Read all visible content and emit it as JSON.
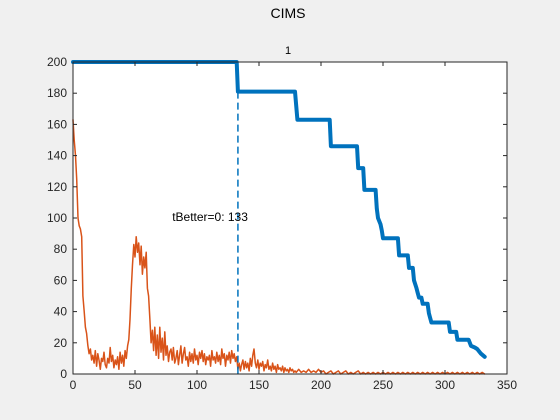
{
  "figure": {
    "title": "CIMS",
    "background": "#f0f0f0"
  },
  "chart_data": {
    "type": "line",
    "title": "1",
    "xlabel": "",
    "ylabel": "",
    "xlim": [
      0,
      350
    ],
    "ylim": [
      0,
      200
    ],
    "xticks": [
      0,
      50,
      100,
      150,
      200,
      250,
      300,
      350
    ],
    "yticks": [
      0,
      20,
      40,
      60,
      80,
      100,
      120,
      140,
      160,
      180,
      200
    ],
    "grid": false,
    "series": [
      {
        "color": "#0072bd",
        "style": "step-thick",
        "points": [
          [
            0,
            200
          ],
          [
            132,
            200
          ],
          [
            133,
            181
          ],
          [
            179,
            181
          ],
          [
            181,
            163
          ],
          [
            207,
            163
          ],
          [
            208,
            146
          ],
          [
            229,
            146
          ],
          [
            230,
            132
          ],
          [
            234,
            132
          ],
          [
            235,
            118
          ],
          [
            244,
            118
          ],
          [
            245,
            106
          ],
          [
            246,
            100
          ],
          [
            248,
            96
          ],
          [
            249,
            92
          ],
          [
            250,
            87
          ],
          [
            262,
            87
          ],
          [
            263,
            76
          ],
          [
            270,
            76
          ],
          [
            271,
            68
          ],
          [
            274,
            68
          ],
          [
            275,
            60
          ],
          [
            277,
            55
          ],
          [
            278,
            52
          ],
          [
            279,
            49
          ],
          [
            281,
            49
          ],
          [
            282,
            45
          ],
          [
            286,
            45
          ],
          [
            287,
            39
          ],
          [
            288,
            36
          ],
          [
            289,
            33
          ],
          [
            303,
            33
          ],
          [
            304,
            27
          ],
          [
            309,
            27
          ],
          [
            310,
            22
          ],
          [
            319,
            22
          ],
          [
            321,
            18
          ],
          [
            324,
            17
          ],
          [
            326,
            16
          ],
          [
            329,
            13
          ],
          [
            332,
            11
          ]
        ]
      },
      {
        "color": "#d95319",
        "style": "line-thin",
        "points": [
          [
            0,
            163
          ],
          [
            1,
            150
          ],
          [
            2,
            140
          ],
          [
            3,
            125
          ],
          [
            4,
            100
          ],
          [
            5,
            95
          ],
          [
            6,
            93
          ],
          [
            7,
            88
          ],
          [
            8,
            50
          ],
          [
            9,
            40
          ],
          [
            10,
            30
          ],
          [
            11,
            26
          ],
          [
            12,
            18
          ],
          [
            13,
            13
          ],
          [
            14,
            16
          ],
          [
            15,
            9
          ],
          [
            16,
            12
          ],
          [
            17,
            7
          ],
          [
            18,
            15
          ],
          [
            19,
            5
          ],
          [
            20,
            13
          ],
          [
            21,
            9
          ],
          [
            22,
            3
          ],
          [
            23,
            10
          ],
          [
            24,
            8
          ],
          [
            25,
            14
          ],
          [
            26,
            6
          ],
          [
            27,
            4
          ],
          [
            28,
            10
          ],
          [
            29,
            7
          ],
          [
            30,
            17
          ],
          [
            31,
            8
          ],
          [
            32,
            12
          ],
          [
            33,
            4
          ],
          [
            34,
            9
          ],
          [
            35,
            6
          ],
          [
            36,
            11
          ],
          [
            37,
            3
          ],
          [
            38,
            14
          ],
          [
            39,
            7
          ],
          [
            40,
            12
          ],
          [
            41,
            5
          ],
          [
            42,
            15
          ],
          [
            43,
            10
          ],
          [
            44,
            18
          ],
          [
            45,
            22
          ],
          [
            46,
            35
          ],
          [
            47,
            55
          ],
          [
            48,
            70
          ],
          [
            49,
            83
          ],
          [
            50,
            75
          ],
          [
            51,
            88
          ],
          [
            52,
            78
          ],
          [
            53,
            84
          ],
          [
            54,
            70
          ],
          [
            55,
            82
          ],
          [
            56,
            64
          ],
          [
            57,
            75
          ],
          [
            58,
            68
          ],
          [
            59,
            78
          ],
          [
            60,
            55
          ],
          [
            61,
            50
          ],
          [
            62,
            35
          ],
          [
            63,
            20
          ],
          [
            64,
            28
          ],
          [
            65,
            15
          ],
          [
            66,
            30
          ],
          [
            67,
            12
          ],
          [
            68,
            25
          ],
          [
            69,
            10
          ],
          [
            70,
            30
          ],
          [
            71,
            14
          ],
          [
            72,
            23
          ],
          [
            73,
            9
          ],
          [
            74,
            27
          ],
          [
            75,
            12
          ],
          [
            76,
            18
          ],
          [
            77,
            8
          ],
          [
            78,
            14
          ],
          [
            79,
            16
          ],
          [
            80,
            9
          ],
          [
            81,
            17
          ],
          [
            82,
            7
          ],
          [
            83,
            10
          ],
          [
            84,
            15
          ],
          [
            85,
            6
          ],
          [
            86,
            12
          ],
          [
            87,
            18
          ],
          [
            88,
            7
          ],
          [
            89,
            13
          ],
          [
            90,
            17
          ],
          [
            91,
            9
          ],
          [
            92,
            11
          ],
          [
            93,
            5
          ],
          [
            94,
            14
          ],
          [
            95,
            8
          ],
          [
            96,
            13
          ],
          [
            97,
            7
          ],
          [
            98,
            16
          ],
          [
            99,
            9
          ],
          [
            100,
            12
          ],
          [
            101,
            6
          ],
          [
            102,
            14
          ],
          [
            103,
            10
          ],
          [
            104,
            15
          ],
          [
            105,
            8
          ],
          [
            106,
            13
          ],
          [
            107,
            6
          ],
          [
            108,
            11
          ],
          [
            109,
            9
          ],
          [
            110,
            12
          ],
          [
            111,
            5
          ],
          [
            112,
            15
          ],
          [
            113,
            9
          ],
          [
            114,
            11
          ],
          [
            115,
            7
          ],
          [
            116,
            14
          ],
          [
            117,
            8
          ],
          [
            118,
            12
          ],
          [
            119,
            6
          ],
          [
            120,
            16
          ],
          [
            121,
            10
          ],
          [
            122,
            13
          ],
          [
            123,
            5
          ],
          [
            124,
            12
          ],
          [
            125,
            9
          ],
          [
            126,
            14
          ],
          [
            127,
            7
          ],
          [
            128,
            15
          ],
          [
            129,
            10
          ],
          [
            130,
            13
          ],
          [
            131,
            8
          ],
          [
            132,
            11
          ],
          [
            133,
            3
          ],
          [
            134,
            7
          ],
          [
            135,
            2
          ],
          [
            136,
            6
          ],
          [
            137,
            9
          ],
          [
            138,
            3
          ],
          [
            139,
            8
          ],
          [
            140,
            4
          ],
          [
            141,
            7
          ],
          [
            142,
            2
          ],
          [
            143,
            10
          ],
          [
            144,
            5
          ],
          [
            145,
            12
          ],
          [
            146,
            16
          ],
          [
            147,
            7
          ],
          [
            148,
            4
          ],
          [
            149,
            9
          ],
          [
            150,
            3
          ],
          [
            151,
            7
          ],
          [
            152,
            5
          ],
          [
            153,
            8
          ],
          [
            154,
            2
          ],
          [
            155,
            6
          ],
          [
            156,
            4
          ],
          [
            157,
            9
          ],
          [
            158,
            3
          ],
          [
            159,
            5
          ],
          [
            160,
            2
          ],
          [
            161,
            7
          ],
          [
            162,
            3
          ],
          [
            163,
            5
          ],
          [
            164,
            1
          ],
          [
            165,
            6
          ],
          [
            166,
            3
          ],
          [
            167,
            4
          ],
          [
            168,
            2
          ],
          [
            169,
            5
          ],
          [
            170,
            1
          ],
          [
            171,
            4
          ],
          [
            172,
            2
          ],
          [
            173,
            3
          ],
          [
            174,
            1
          ],
          [
            175,
            4
          ],
          [
            176,
            2
          ],
          [
            177,
            3
          ],
          [
            178,
            1
          ],
          [
            179,
            2
          ],
          [
            180,
            1
          ],
          [
            182,
            3
          ],
          [
            184,
            1
          ],
          [
            186,
            2
          ],
          [
            188,
            1
          ],
          [
            190,
            3
          ],
          [
            192,
            1
          ],
          [
            194,
            2
          ],
          [
            196,
            1
          ],
          [
            198,
            3
          ],
          [
            200,
            1
          ],
          [
            202,
            2
          ],
          [
            204,
            0
          ],
          [
            206,
            1
          ],
          [
            208,
            2
          ],
          [
            210,
            0
          ],
          [
            212,
            1
          ],
          [
            214,
            2
          ],
          [
            216,
            0
          ],
          [
            218,
            1
          ],
          [
            220,
            2
          ],
          [
            222,
            0
          ],
          [
            224,
            1
          ],
          [
            226,
            0
          ],
          [
            228,
            1
          ],
          [
            230,
            2
          ],
          [
            232,
            0
          ],
          [
            234,
            1
          ],
          [
            236,
            0
          ],
          [
            238,
            1
          ],
          [
            240,
            0
          ],
          [
            242,
            1
          ],
          [
            244,
            0
          ],
          [
            246,
            1
          ],
          [
            248,
            0
          ],
          [
            250,
            1
          ],
          [
            252,
            0
          ],
          [
            254,
            1
          ],
          [
            256,
            0
          ],
          [
            258,
            1
          ],
          [
            260,
            0
          ],
          [
            262,
            1
          ],
          [
            264,
            0
          ],
          [
            266,
            1
          ],
          [
            268,
            0
          ],
          [
            270,
            1
          ],
          [
            272,
            0
          ],
          [
            274,
            1
          ],
          [
            276,
            0
          ],
          [
            278,
            1
          ],
          [
            280,
            0
          ],
          [
            282,
            1
          ],
          [
            284,
            0
          ],
          [
            286,
            1
          ],
          [
            288,
            0
          ],
          [
            290,
            1
          ],
          [
            292,
            0
          ],
          [
            294,
            1
          ],
          [
            296,
            0
          ],
          [
            298,
            1
          ],
          [
            300,
            0
          ],
          [
            302,
            1
          ],
          [
            304,
            0
          ],
          [
            306,
            1
          ],
          [
            308,
            0
          ],
          [
            310,
            1
          ],
          [
            312,
            0
          ],
          [
            314,
            1
          ],
          [
            316,
            0
          ],
          [
            318,
            1
          ],
          [
            320,
            0
          ],
          [
            322,
            1
          ],
          [
            324,
            0
          ],
          [
            326,
            1
          ],
          [
            328,
            0
          ],
          [
            330,
            1
          ],
          [
            332,
            0
          ]
        ]
      }
    ],
    "vline": {
      "x": 133,
      "color": "#0072bd",
      "style": "dashed"
    },
    "annotation": {
      "text": "tBetter=0: 133",
      "x": 80,
      "y": 98
    }
  }
}
